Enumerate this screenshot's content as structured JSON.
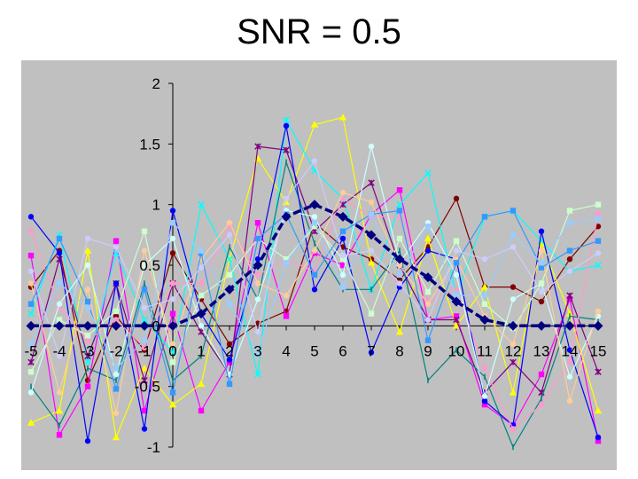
{
  "slide": {
    "title": "SNR = 0.5"
  },
  "chart_data": {
    "type": "line",
    "title": "",
    "xlabel": "",
    "ylabel": "",
    "x": [
      -5,
      -4,
      -3,
      -2,
      -1,
      0,
      1,
      2,
      3,
      4,
      5,
      6,
      7,
      8,
      9,
      10,
      11,
      12,
      13,
      14,
      15
    ],
    "xlim": [
      -5,
      15
    ],
    "ylim": [
      -1,
      2
    ],
    "yticks": [
      2,
      1.5,
      1,
      0.5,
      0,
      -0.5,
      -1
    ],
    "ytick_labels": [
      "2",
      "1.5",
      "1",
      "0.5",
      "0",
      "-0.5",
      "-1"
    ],
    "xtick_labels": [
      "-5",
      "-4",
      "-3",
      "-2",
      "-1",
      "0",
      "1",
      "2",
      "3",
      "4",
      "5",
      "6",
      "7",
      "8",
      "9",
      "10",
      "11",
      "12",
      "13",
      "14",
      "15"
    ],
    "grid": false,
    "legend": "none",
    "plot_background": "#c0c0c0",
    "series": [
      {
        "color": "#000080",
        "marker": "diamond",
        "style": "dashed-bold",
        "values": [
          0,
          0,
          0,
          0,
          0,
          0,
          0.1,
          0.3,
          0.5,
          0.9,
          1.0,
          0.9,
          0.75,
          0.55,
          0.4,
          0.2,
          0.05,
          0,
          0,
          0,
          0
        ]
      },
      {
        "color": "#800000",
        "marker": "circle",
        "values": [
          0.32,
          0.62,
          -0.45,
          0.08,
          -0.2,
          0.6,
          0.22,
          -0.15,
          0.02,
          0.12,
          0.85,
          0.65,
          0.55,
          0.38,
          0.65,
          1.05,
          0.32,
          0.32,
          0.2,
          0.55,
          0.82
        ]
      },
      {
        "color": "#ff00ff",
        "marker": "square",
        "values": [
          0.58,
          -0.9,
          -0.5,
          0.7,
          -0.7,
          0.1,
          -0.7,
          -0.3,
          0.85,
          0.08,
          0.6,
          0.5,
          0.92,
          1.12,
          0.05,
          0.08,
          -0.65,
          -0.82,
          -0.4,
          0.22,
          -0.95
        ]
      },
      {
        "color": "#ffff00",
        "marker": "triangle",
        "values": [
          -0.8,
          -0.7,
          0.62,
          -0.92,
          -0.35,
          -0.65,
          -0.48,
          0.55,
          1.38,
          1.02,
          1.66,
          1.72,
          0.52,
          -0.05,
          0.72,
          0.0,
          0.32,
          -0.55,
          0.68,
          0.1,
          -0.7
        ]
      },
      {
        "color": "#00ffff",
        "marker": "x",
        "values": [
          0.1,
          0.75,
          -0.3,
          0.6,
          0.05,
          -0.22,
          1.0,
          0.55,
          -0.4,
          1.7,
          1.28,
          1.05,
          0.3,
          1.0,
          1.26,
          0.25,
          0.9,
          0.95,
          0.7,
          0.45,
          0.5
        ]
      },
      {
        "color": "#800080",
        "marker": "star",
        "values": [
          -0.3,
          0.55,
          -0.25,
          0.35,
          -0.45,
          0.35,
          -0.05,
          -0.4,
          1.48,
          1.45,
          0.78,
          1.0,
          1.18,
          0.5,
          0.05,
          0.05,
          -0.55,
          -0.3,
          -0.55,
          0.25,
          -0.38
        ]
      },
      {
        "color": "#008080",
        "marker": "plus",
        "values": [
          -0.5,
          -0.82,
          -0.35,
          -0.45,
          0.35,
          -0.45,
          -0.25,
          0.65,
          0.22,
          1.35,
          0.68,
          0.3,
          0.3,
          0.62,
          -0.45,
          -0.2,
          -0.42,
          -1.0,
          -0.6,
          0.08,
          0.05
        ]
      },
      {
        "color": "#0000ff",
        "marker": "circle",
        "values": [
          0.9,
          0.6,
          -0.95,
          0.35,
          -0.85,
          0.95,
          0.1,
          -0.28,
          0.55,
          1.65,
          0.3,
          0.72,
          -0.22,
          0.32,
          0.62,
          0.55,
          -0.62,
          -0.82,
          0.78,
          -0.2,
          -0.92
        ]
      },
      {
        "color": "#ff99cc",
        "marker": "circle",
        "values": [
          0.78,
          0.15,
          -0.12,
          0.05,
          -0.18,
          0.35,
          0.35,
          0.82,
          0.42,
          0.55,
          0.45,
          1.05,
          0.9,
          0.9,
          0.2,
          0.3,
          -0.35,
          -0.85,
          -0.65,
          -0.3,
          0.92
        ]
      },
      {
        "color": "#ccffff",
        "marker": "circle",
        "values": [
          -0.55,
          0.18,
          0.5,
          -0.4,
          0.5,
          0.72,
          0.0,
          -0.4,
          0.22,
          0.95,
          0.9,
          0.42,
          1.48,
          0.52,
          0.85,
          0.42,
          -0.58,
          0.22,
          0.35,
          -0.42,
          0.08
        ]
      },
      {
        "color": "#ccffcc",
        "marker": "square",
        "values": [
          -0.38,
          0.05,
          -0.08,
          0.12,
          0.78,
          -0.3,
          0.25,
          0.42,
          0.72,
          0.55,
          0.82,
          0.55,
          0.1,
          0.72,
          0.28,
          0.7,
          0.18,
          -0.02,
          0.35,
          0.95,
          1.0
        ]
      },
      {
        "color": "#ffcc99",
        "marker": "circle",
        "values": [
          0.35,
          -0.55,
          0.3,
          -0.72,
          0.62,
          -0.15,
          0.55,
          0.85,
          0.35,
          0.25,
          0.62,
          1.1,
          1.02,
          0.5,
          0.18,
          0.55,
          0.08,
          -0.15,
          0.62,
          -0.62,
          0.12
        ]
      },
      {
        "color": "#3399ff",
        "marker": "square",
        "values": [
          0.18,
          0.72,
          0.2,
          -0.52,
          0.3,
          -0.55,
          0.6,
          -0.48,
          0.72,
          0.92,
          0.42,
          0.78,
          0.92,
          0.95,
          -0.12,
          0.52,
          0.9,
          0.95,
          0.48,
          0.62,
          0.7
        ]
      },
      {
        "color": "#99ccff",
        "marker": "square",
        "values": [
          -0.15,
          0.35,
          0.15,
          -0.35,
          -0.12,
          0.85,
          0.62,
          0.18,
          -0.22,
          0.52,
          0.85,
          0.32,
          0.92,
          0.42,
          0.82,
          0.25,
          0.25,
          0.75,
          0.52,
          0.85,
          0.88
        ]
      },
      {
        "color": "#ccccff",
        "marker": "circle",
        "values": [
          0.45,
          -0.25,
          0.72,
          0.65,
          0.15,
          0.22,
          0.48,
          0.75,
          -0.05,
          1.05,
          1.36,
          0.58,
          0.62,
          0.35,
          0.05,
          0.62,
          0.55,
          0.65,
          0.28,
          0.45,
          0.6
        ]
      }
    ]
  }
}
